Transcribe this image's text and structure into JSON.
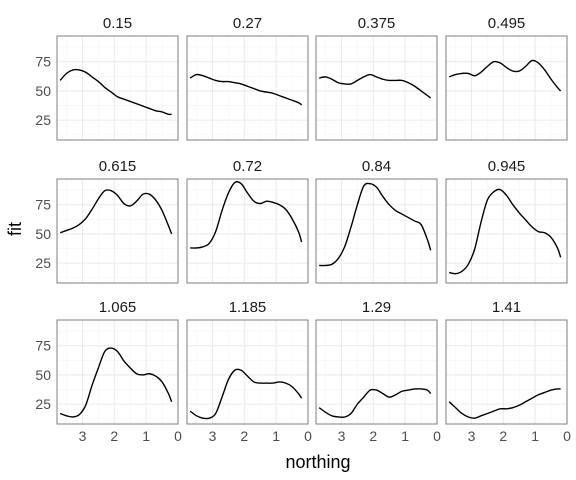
{
  "chart_data": {
    "type": "line",
    "xlabel": "northing",
    "ylabel": "fit",
    "xlim": [
      3.8,
      0
    ],
    "ylim": [
      8,
      97
    ],
    "x_ticks": [
      3,
      2,
      1,
      0
    ],
    "y_ticks": [
      25,
      50,
      75
    ],
    "grid": true,
    "facet_layout": {
      "rows": 3,
      "cols": 4
    },
    "panels": [
      {
        "label": "0.15",
        "x": [
          3.7,
          3.5,
          3.3,
          3.1,
          2.9,
          2.7,
          2.5,
          2.3,
          2.1,
          1.9,
          1.7,
          1.5,
          1.3,
          1.1,
          0.9,
          0.7,
          0.5,
          0.3,
          0.2
        ],
        "y": [
          59,
          65,
          68,
          68,
          66,
          62,
          58,
          53,
          49,
          45,
          43,
          41,
          39,
          37,
          35,
          33,
          32,
          30,
          30
        ]
      },
      {
        "label": "0.27",
        "x": [
          3.7,
          3.5,
          3.3,
          3.1,
          2.9,
          2.7,
          2.5,
          2.3,
          2.1,
          1.9,
          1.7,
          1.5,
          1.3,
          1.1,
          0.9,
          0.7,
          0.5,
          0.3,
          0.2
        ],
        "y": [
          61,
          64,
          63,
          61,
          59,
          58,
          58,
          57,
          56,
          54,
          52,
          50,
          49,
          48,
          46,
          44,
          42,
          40,
          38
        ]
      },
      {
        "label": "0.375",
        "x": [
          3.7,
          3.5,
          3.3,
          3.1,
          2.9,
          2.7,
          2.5,
          2.3,
          2.1,
          1.9,
          1.7,
          1.5,
          1.3,
          1.1,
          0.9,
          0.7,
          0.5,
          0.3,
          0.2
        ],
        "y": [
          61,
          62,
          60,
          57,
          56,
          56,
          59,
          62,
          64,
          62,
          60,
          59,
          59,
          59,
          57,
          54,
          50,
          46,
          44
        ]
      },
      {
        "label": "0.495",
        "x": [
          3.7,
          3.5,
          3.3,
          3.1,
          2.9,
          2.7,
          2.5,
          2.3,
          2.1,
          1.9,
          1.7,
          1.5,
          1.3,
          1.1,
          0.9,
          0.7,
          0.5,
          0.3,
          0.2
        ],
        "y": [
          62,
          64,
          65,
          65,
          63,
          66,
          71,
          75,
          74,
          70,
          67,
          67,
          71,
          76,
          74,
          68,
          60,
          53,
          50
        ]
      },
      {
        "label": "0.615",
        "x": [
          3.7,
          3.5,
          3.3,
          3.1,
          2.9,
          2.7,
          2.5,
          2.3,
          2.1,
          1.9,
          1.7,
          1.5,
          1.3,
          1.1,
          0.9,
          0.7,
          0.5,
          0.3,
          0.2
        ],
        "y": [
          51,
          53,
          55,
          58,
          63,
          71,
          80,
          87,
          87,
          83,
          76,
          74,
          78,
          84,
          84,
          79,
          70,
          57,
          50
        ]
      },
      {
        "label": "0.72",
        "x": [
          3.7,
          3.5,
          3.3,
          3.1,
          2.9,
          2.7,
          2.5,
          2.3,
          2.1,
          1.9,
          1.7,
          1.5,
          1.3,
          1.1,
          0.9,
          0.7,
          0.5,
          0.3,
          0.2
        ],
        "y": [
          38,
          38,
          39,
          42,
          52,
          70,
          85,
          94,
          93,
          85,
          78,
          76,
          78,
          77,
          75,
          71,
          63,
          52,
          43
        ]
      },
      {
        "label": "0.84",
        "x": [
          3.7,
          3.5,
          3.3,
          3.1,
          2.9,
          2.7,
          2.5,
          2.3,
          2.1,
          1.9,
          1.7,
          1.5,
          1.3,
          1.1,
          0.9,
          0.7,
          0.5,
          0.3,
          0.2
        ],
        "y": [
          23,
          23,
          24,
          29,
          39,
          56,
          75,
          91,
          93,
          90,
          82,
          75,
          70,
          67,
          64,
          61,
          58,
          45,
          36
        ]
      },
      {
        "label": "0.945",
        "x": [
          3.7,
          3.5,
          3.3,
          3.1,
          2.9,
          2.7,
          2.5,
          2.3,
          2.1,
          1.9,
          1.7,
          1.5,
          1.3,
          1.1,
          0.9,
          0.7,
          0.5,
          0.3,
          0.2
        ],
        "y": [
          17,
          16,
          18,
          24,
          37,
          60,
          79,
          86,
          88,
          83,
          75,
          68,
          62,
          56,
          52,
          51,
          47,
          38,
          30
        ]
      },
      {
        "label": "1.065",
        "x": [
          3.7,
          3.5,
          3.3,
          3.1,
          2.9,
          2.7,
          2.5,
          2.3,
          2.1,
          1.9,
          1.7,
          1.5,
          1.3,
          1.1,
          0.9,
          0.7,
          0.5,
          0.3,
          0.2
        ],
        "y": [
          17,
          15,
          14,
          16,
          24,
          41,
          56,
          70,
          73,
          70,
          62,
          56,
          51,
          50,
          51,
          49,
          44,
          34,
          27
        ]
      },
      {
        "label": "1.185",
        "x": [
          3.7,
          3.5,
          3.3,
          3.1,
          2.9,
          2.7,
          2.5,
          2.3,
          2.1,
          1.9,
          1.7,
          1.5,
          1.3,
          1.1,
          0.9,
          0.7,
          0.5,
          0.3,
          0.2
        ],
        "y": [
          19,
          15,
          13,
          13,
          17,
          31,
          46,
          54,
          54,
          49,
          44,
          43,
          43,
          43,
          44,
          43,
          40,
          34,
          30
        ]
      },
      {
        "label": "1.29",
        "x": [
          3.7,
          3.5,
          3.3,
          3.1,
          2.9,
          2.7,
          2.5,
          2.3,
          2.1,
          1.9,
          1.7,
          1.5,
          1.3,
          1.1,
          0.9,
          0.7,
          0.5,
          0.3,
          0.2
        ],
        "y": [
          22,
          18,
          15,
          14,
          14,
          17,
          25,
          31,
          37,
          37,
          34,
          31,
          33,
          36,
          37,
          38,
          38,
          37,
          34
        ]
      },
      {
        "label": "1.41",
        "x": [
          3.7,
          3.5,
          3.3,
          3.1,
          2.9,
          2.7,
          2.5,
          2.3,
          2.1,
          1.9,
          1.7,
          1.5,
          1.3,
          1.1,
          0.9,
          0.7,
          0.5,
          0.3,
          0.2
        ],
        "y": [
          27,
          22,
          17,
          14,
          13,
          15,
          17,
          19,
          21,
          21,
          22,
          24,
          27,
          30,
          33,
          35,
          37,
          38,
          38
        ]
      }
    ]
  },
  "colors": {
    "line": "#000000",
    "panel_border": "#7f7f7f",
    "grid_major": "#ebebeb",
    "grid_minor": "#f5f5f5",
    "strip_text": "#1a1a1a",
    "tick_text": "#4d4d4d"
  }
}
